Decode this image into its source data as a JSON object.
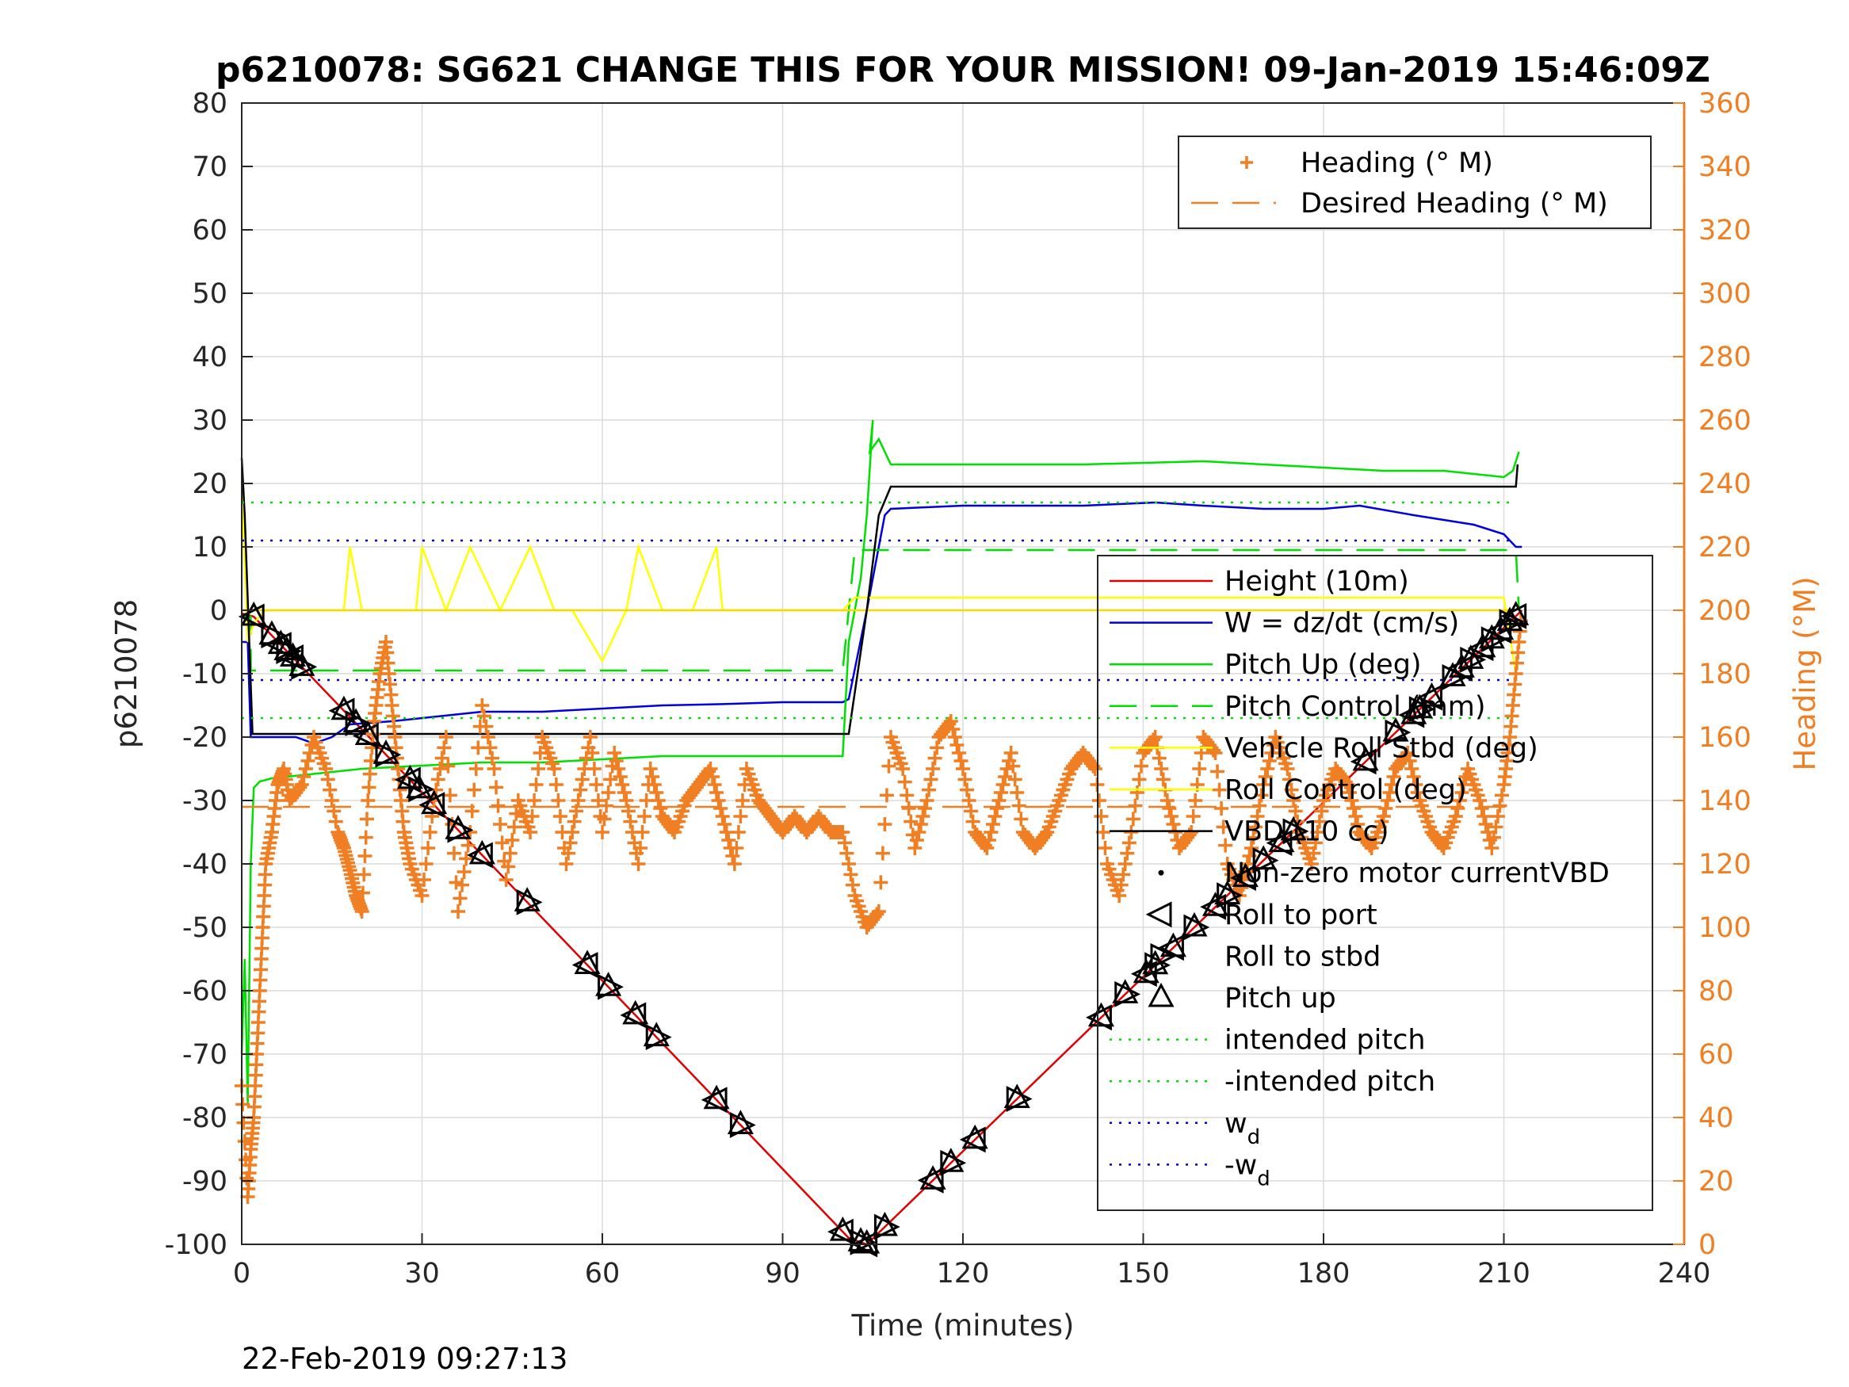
{
  "page": {
    "title": "p6210078: SG621 CHANGE THIS FOR YOUR MISSION! 09-Jan-2019 15:46:09Z",
    "footer_timestamp": "22-Feb-2019 09:27:13"
  },
  "chart_data": {
    "type": "line",
    "title": "p6210078: SG621 CHANGE THIS FOR YOUR MISSION! 09-Jan-2019 15:46:09Z",
    "xlabel": "Time (minutes)",
    "ylabel": "p6210078",
    "ylabel_right": "Heading (°M)",
    "xlim": [
      0,
      240
    ],
    "ylim": [
      -100,
      80
    ],
    "ylim_right": [
      0,
      360
    ],
    "xticks": [
      "0",
      "30",
      "60",
      "90",
      "120",
      "150",
      "180",
      "210",
      "240"
    ],
    "yticks": [
      "80",
      "70",
      "60",
      "50",
      "40",
      "30",
      "20",
      "10",
      "0",
      "-10",
      "-20",
      "-30",
      "-40",
      "-50",
      "-60",
      "-70",
      "-80",
      "-90",
      "-100"
    ],
    "yticks_right": [
      "360",
      "340",
      "320",
      "300",
      "280",
      "260",
      "240",
      "220",
      "200",
      "180",
      "160",
      "140",
      "120",
      "100",
      "80",
      "60",
      "40",
      "20",
      "0"
    ],
    "grid": true,
    "colors": {
      "height": "#e00000",
      "w": "#0000dd",
      "pitch": "#00e000",
      "roll": "#ffff00",
      "vbd": "#000000",
      "heading": "#f07f24",
      "axis_right": "#f07f24"
    },
    "legend_heading": {
      "placement": "top-right",
      "entries": [
        "Heading (° M)",
        "Desired Heading (° M)"
      ]
    },
    "legend_main": {
      "placement": "right",
      "entries": [
        {
          "label": "Height (10m)",
          "wd": false
        },
        {
          "label": "W = dz/dt (cm/s)",
          "wd": false
        },
        {
          "label": "Pitch Up (deg)",
          "wd": false
        },
        {
          "label": "Pitch Control (mm)",
          "wd": false
        },
        {
          "label": "Vehicle Roll Stbd (deg)",
          "wd": false
        },
        {
          "label": "Roll Control (deg)",
          "wd": false
        },
        {
          "label": "VBD (10 cc)",
          "wd": false
        },
        {
          "label": "Non-zero motor currentVBD",
          "wd": false
        },
        {
          "label": "Roll to port",
          "wd": false
        },
        {
          "label": "Roll to stbd",
          "wd": false
        },
        {
          "label": "Pitch up",
          "wd": false
        },
        {
          "label": "intended pitch",
          "wd": false
        },
        {
          "label": "-intended pitch",
          "wd": false
        },
        {
          "label": "w",
          "wd": true,
          "sub": "d"
        },
        {
          "label": "-w",
          "wd": true,
          "sub": "d"
        }
      ]
    },
    "series": [
      {
        "name": "Height (10m)",
        "axis": "left",
        "style": "solid",
        "color": "#e00000",
        "x": [
          0,
          2,
          101,
          104,
          213
        ],
        "y": [
          -0.5,
          -1,
          -99,
          -100,
          0
        ]
      },
      {
        "name": "W = dz/dt (cm/s)",
        "axis": "left",
        "style": "solid",
        "color": "#0000dd",
        "x": [
          0,
          1,
          1.5,
          3,
          6,
          9,
          12,
          15,
          18,
          25,
          30,
          35,
          40,
          50,
          60,
          70,
          80,
          90,
          100,
          101,
          104,
          106,
          107,
          108,
          120,
          140,
          152,
          160,
          170,
          180,
          186,
          195,
          205,
          210,
          212,
          213
        ],
        "y": [
          -5,
          -5,
          -20,
          -20,
          -20,
          -20,
          -21,
          -20,
          -18,
          -17.5,
          -17,
          -16.5,
          -16,
          -16,
          -15.5,
          -15,
          -14.8,
          -14.5,
          -14.5,
          -14,
          0,
          10,
          15,
          16,
          16.5,
          16.5,
          17,
          16.5,
          16,
          16,
          16.5,
          15,
          13.5,
          12,
          10,
          10
        ]
      },
      {
        "name": "Pitch Up (deg)",
        "axis": "left",
        "style": "solid",
        "color": "#00e000",
        "x": [
          0,
          0.5,
          1,
          1.5,
          2,
          3,
          5,
          10,
          20,
          30,
          40,
          50,
          60,
          70,
          80,
          90,
          100,
          101,
          102,
          103,
          104,
          105,
          104.5,
          106,
          108,
          120,
          140,
          160,
          170,
          180,
          190,
          200,
          205,
          210,
          211.5,
          212.5
        ],
        "y": [
          -70,
          -55,
          -78,
          -40,
          -28,
          -27,
          -26.5,
          -26,
          -25,
          -24.5,
          -24,
          -24,
          -23.5,
          -23,
          -23,
          -23,
          -23,
          -5,
          0,
          5,
          15,
          30,
          25,
          27,
          23,
          23,
          23,
          23.5,
          23,
          22.5,
          22,
          22,
          21.5,
          21,
          22,
          25
        ]
      },
      {
        "name": "Pitch Control (mm)",
        "axis": "left",
        "style": "dashed",
        "color": "#00dd00",
        "x": [
          0,
          1.5,
          1.5,
          100,
          102,
          212,
          212.5
        ],
        "y": [
          -1,
          -1,
          -9.5,
          -9.5,
          9.5,
          9.5,
          0
        ]
      },
      {
        "name": "Vehicle Roll Stbd (deg)",
        "axis": "left",
        "style": "solid",
        "color": "#ffff00",
        "x": [
          0,
          1,
          2,
          3,
          4,
          8,
          12,
          17,
          18,
          20,
          25,
          29,
          30,
          34,
          38,
          43,
          48,
          52,
          55,
          60,
          64,
          66,
          70,
          75,
          79,
          80,
          85,
          90,
          95,
          100,
          102,
          105,
          110,
          115,
          120,
          125,
          130,
          135,
          140,
          145,
          150,
          155,
          160,
          165,
          170,
          180,
          190,
          200,
          205,
          210,
          212
        ],
        "y": [
          20,
          -5,
          -2,
          -1,
          0,
          0,
          0,
          0,
          10,
          0,
          0,
          0,
          10,
          0,
          10,
          0,
          10,
          0,
          0,
          -8,
          0,
          10,
          0,
          0,
          10,
          0,
          0,
          0,
          0,
          0,
          2,
          2,
          2,
          2,
          2,
          2,
          2,
          2,
          2,
          2,
          2,
          2,
          2,
          2,
          2,
          2,
          2,
          2,
          2,
          2,
          -10
        ]
      },
      {
        "name": "Roll Control (deg)",
        "axis": "left",
        "style": "solid",
        "color": "#ffd700",
        "x": [
          0,
          212
        ],
        "y": [
          0,
          0
        ]
      },
      {
        "name": "VBD (10 cc)",
        "axis": "left",
        "style": "solid",
        "color": "#000000",
        "x": [
          0,
          0.5,
          1.8,
          2,
          100,
          101,
          104,
          106,
          108,
          211,
          212,
          212.3
        ],
        "y": [
          24,
          15,
          -19.5,
          -19.5,
          -19.5,
          -19.5,
          0,
          15,
          19.5,
          19.5,
          19.5,
          23
        ]
      },
      {
        "name": "intended pitch",
        "axis": "left",
        "style": "dotted",
        "color": "#00e000",
        "x": [
          0,
          212
        ],
        "y": [
          17,
          17
        ]
      },
      {
        "name": "-intended pitch",
        "axis": "left",
        "style": "dotted",
        "color": "#00e000",
        "x": [
          0,
          212
        ],
        "y": [
          -17,
          -17
        ]
      },
      {
        "name": "w",
        "axis": "left",
        "style": "dotted",
        "color": "#0000dd",
        "x": [
          0,
          212
        ],
        "y": [
          11,
          11
        ]
      },
      {
        "name": "-w",
        "axis": "left",
        "style": "dotted",
        "color": "#0000dd",
        "x": [
          0,
          212
        ],
        "y": [
          -11,
          -11
        ]
      },
      {
        "name": "Heading (° M)",
        "axis": "right",
        "style": "markers-plus",
        "color": "#f07f24",
        "x": [
          0,
          1,
          1.5,
          2,
          2.5,
          3,
          3.5,
          4,
          5,
          6,
          7,
          8,
          10,
          12,
          14,
          16,
          17,
          18,
          19,
          20,
          21,
          22,
          23,
          24,
          25,
          26,
          27,
          28,
          30,
          32,
          34,
          36,
          38,
          40,
          42,
          44,
          46,
          48,
          50,
          52,
          54,
          56,
          58,
          60,
          62,
          64,
          66,
          68,
          70,
          72,
          74,
          76,
          78,
          80,
          82,
          84,
          86,
          88,
          90,
          92,
          94,
          96,
          98,
          100,
          102,
          104,
          106,
          108,
          110,
          112,
          114,
          116,
          118,
          120,
          122,
          124,
          126,
          128,
          130,
          132,
          134,
          136,
          138,
          140,
          142,
          144,
          146,
          148,
          150,
          152,
          154,
          156,
          158,
          160,
          162,
          164,
          166,
          168,
          170,
          172,
          174,
          176,
          178,
          180,
          182,
          184,
          186,
          188,
          190,
          192,
          194,
          196,
          198,
          200,
          202,
          204,
          206,
          208,
          210,
          211,
          212,
          213
        ],
        "y": [
          50,
          15,
          30,
          40,
          60,
          80,
          100,
          120,
          130,
          145,
          150,
          140,
          145,
          160,
          150,
          130,
          125,
          118,
          110,
          105,
          140,
          165,
          180,
          190,
          170,
          150,
          130,
          120,
          110,
          140,
          160,
          105,
          130,
          170,
          150,
          115,
          140,
          130,
          160,
          150,
          120,
          140,
          160,
          130,
          155,
          140,
          120,
          150,
          135,
          130,
          140,
          145,
          150,
          135,
          120,
          150,
          140,
          135,
          130,
          135,
          130,
          135,
          130,
          130,
          110,
          100,
          105,
          160,
          150,
          125,
          140,
          160,
          165,
          150,
          130,
          125,
          140,
          155,
          130,
          125,
          130,
          140,
          150,
          155,
          150,
          120,
          110,
          130,
          155,
          160,
          140,
          125,
          130,
          160,
          155,
          120,
          110,
          125,
          145,
          160,
          150,
          130,
          120,
          140,
          150,
          145,
          130,
          125,
          135,
          150,
          155,
          140,
          130,
          125,
          135,
          150,
          140,
          125,
          145,
          160,
          180,
          200
        ]
      },
      {
        "name": "Desired Heading (° M)",
        "axis": "right",
        "style": "dashed",
        "color": "#f07f24",
        "x": [
          0,
          212
        ],
        "y": [
          138,
          138
        ]
      }
    ],
    "markers": {
      "roll_to_port_stbd_x": [
        2,
        5,
        6.5,
        7.5,
        8.5,
        10,
        17,
        19,
        21,
        24,
        28,
        29.5,
        32,
        36,
        40,
        47.5,
        57.5,
        61,
        65.5,
        69,
        79,
        83,
        100,
        103,
        104,
        107,
        115,
        118,
        122,
        129,
        143,
        147,
        150.5,
        152,
        155,
        158.5,
        162,
        164,
        167,
        170,
        173,
        175,
        187,
        192,
        195,
        196,
        198,
        201.5,
        203,
        204.5,
        206.5,
        208,
        209.5,
        211,
        212
      ],
      "pitch_up_x": [
        2,
        5,
        6.5,
        7.5,
        8.5,
        10,
        17,
        19,
        21,
        24,
        28,
        29.5,
        32,
        36,
        40,
        47.5,
        57.5,
        61,
        65.5,
        69,
        79,
        83,
        100,
        103,
        104,
        107,
        115,
        118,
        122,
        129,
        143,
        147,
        150.5,
        152,
        155,
        158.5,
        162,
        164,
        167,
        170,
        173,
        175,
        187,
        192,
        195,
        196,
        198,
        201.5,
        203,
        204.5,
        206.5,
        208,
        209.5,
        211,
        212
      ]
    }
  }
}
